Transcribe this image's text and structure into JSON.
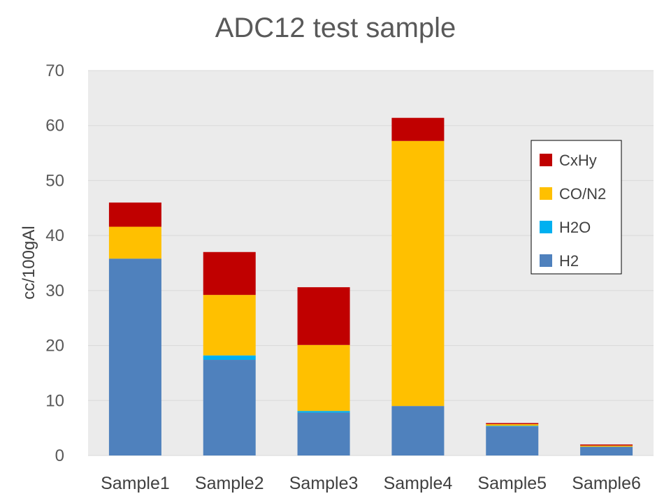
{
  "chart_data": {
    "type": "bar",
    "stacked": true,
    "title": "ADC12 test sample",
    "xlabel": "",
    "ylabel": "cc/100gAl",
    "ylim": [
      0,
      70
    ],
    "yticks": [
      0,
      10,
      20,
      30,
      40,
      50,
      60,
      70
    ],
    "grid": true,
    "legend_position": "right",
    "categories": [
      "Sample1",
      "Sample2",
      "Sample3",
      "Sample4",
      "Sample5",
      "Sample6"
    ],
    "series": [
      {
        "name": "H2",
        "color": "#4f81bd",
        "values": [
          35.8,
          17.4,
          7.8,
          9.0,
          5.3,
          1.6
        ]
      },
      {
        "name": "H2O",
        "color": "#00b0f0",
        "values": [
          0.0,
          0.8,
          0.3,
          0.0,
          0.1,
          0.0
        ]
      },
      {
        "name": "CO/N2",
        "color": "#ffc000",
        "values": [
          5.8,
          11.0,
          12.0,
          48.2,
          0.3,
          0.2
        ]
      },
      {
        "name": "CxHy",
        "color": "#c00000",
        "values": [
          4.4,
          7.8,
          10.5,
          4.2,
          0.2,
          0.2
        ]
      }
    ],
    "legend_order": [
      "CxHy",
      "CO/N2",
      "H2O",
      "H2"
    ]
  }
}
